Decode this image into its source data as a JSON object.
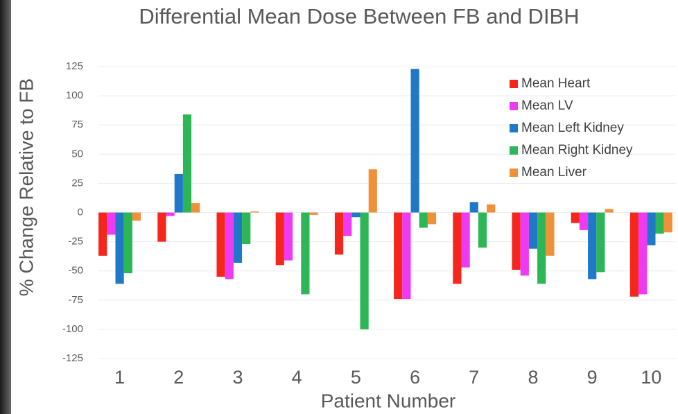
{
  "chart_data": {
    "type": "bar",
    "title": "Differential Mean Dose Between FB and DIBH",
    "xlabel": "Patient Number",
    "ylabel": "% Change Relative to FB",
    "categories": [
      "1",
      "2",
      "3",
      "4",
      "5",
      "6",
      "7",
      "8",
      "9",
      "10"
    ],
    "series": [
      {
        "name": "Mean Heart",
        "color": "#f5261c",
        "values": [
          -37,
          -25,
          -55,
          -45,
          -36,
          -74,
          -61,
          -49,
          -9,
          -72
        ]
      },
      {
        "name": "Mean LV",
        "color": "#ee3af2",
        "values": [
          -19,
          -3,
          -57,
          -41,
          -20,
          -74,
          -47,
          -54,
          -15,
          -70
        ]
      },
      {
        "name": "Mean Left Kidney",
        "color": "#1f78c8",
        "values": [
          -61,
          33,
          -43,
          0,
          -4,
          123,
          9,
          -31,
          -57,
          -28
        ]
      },
      {
        "name": "Mean Right Kidney",
        "color": "#2db656",
        "values": [
          -52,
          84,
          -27,
          -70,
          -100,
          -13,
          -30,
          -61,
          -51,
          -18
        ]
      },
      {
        "name": "Mean Liver",
        "color": "#f0913a",
        "values": [
          -7,
          8,
          1,
          -2,
          37,
          -10,
          7,
          -37,
          3,
          -17
        ]
      }
    ],
    "ylim": [
      -125,
      125
    ],
    "yticks": [
      125,
      100,
      75,
      50,
      25,
      0,
      -25,
      -50,
      -75,
      -100,
      -125
    ],
    "grid": true,
    "legend": "upper right"
  }
}
